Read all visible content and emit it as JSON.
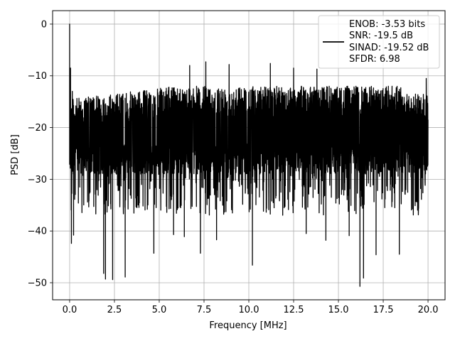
{
  "chart_data": {
    "type": "line",
    "title": "",
    "xlabel": "Frequency [MHz]",
    "ylabel": "PSD [dB]",
    "xlim": [
      -0.95,
      20.95
    ],
    "ylim": [
      -53.3,
      2.6
    ],
    "xticks": [
      0.0,
      2.5,
      5.0,
      7.5,
      10.0,
      12.5,
      15.0,
      17.5,
      20.0
    ],
    "xtick_labels": [
      "0.0",
      "2.5",
      "5.0",
      "7.5",
      "10.0",
      "12.5",
      "15.0",
      "17.5",
      "20.0"
    ],
    "yticks": [
      0,
      -10,
      -20,
      -30,
      -40,
      -50
    ],
    "ytick_labels": [
      "0",
      "−10",
      "−20",
      "−30",
      "−40",
      "−50"
    ],
    "grid": true,
    "legend_position": "top-right",
    "legend_lines": [
      "ENOB: -3.53 bits",
      "SNR: -19.5 dB",
      "SINAD: -19.52 dB",
      "SFDR: 6.98"
    ],
    "series": [
      {
        "color": "#000000",
        "x_range": [
          0.0,
          20.0
        ],
        "noise_band": {
          "upper_typ": -12,
          "lower_typ": -29
        },
        "spikes_x": [
          0.0,
          0.05,
          0.1,
          0.15,
          0.22
        ],
        "spikes_y": [
          0.0,
          -8.5,
          -42.4,
          -13.0,
          -40.8
        ],
        "dips_x": [
          1.9,
          2.0,
          2.4,
          3.1,
          4.7,
          5.8,
          6.4,
          7.3,
          8.2,
          10.2,
          13.2,
          14.3,
          15.6,
          16.2,
          16.4,
          17.1,
          18.4
        ],
        "dips_y": [
          -48.2,
          -49.3,
          -49.4,
          -48.9,
          -44.3,
          -40.7,
          -41.1,
          -44.3,
          -41.7,
          -46.6,
          -40.5,
          -41.8,
          -40.9,
          -50.7,
          -49.1,
          -44.6,
          -44.5
        ],
        "peaks_x": [
          6.7,
          7.6,
          8.9,
          11.2,
          12.5,
          13.8,
          19.9
        ],
        "peaks_y": [
          -8.0,
          -7.3,
          -7.8,
          -7.6,
          -8.5,
          -8.7,
          -10.5
        ]
      }
    ]
  }
}
